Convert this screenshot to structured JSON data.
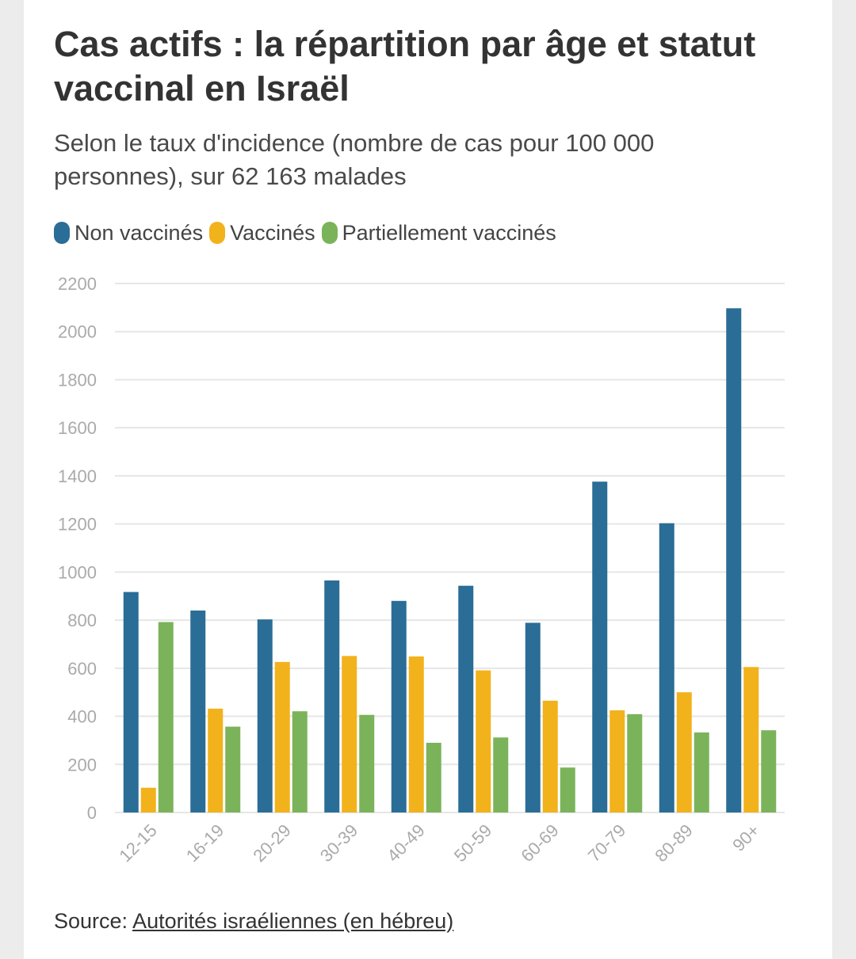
{
  "chart_data": {
    "type": "bar",
    "title": "Cas actifs : la répartition par âge et statut vaccinal en Israël",
    "subtitle": "Selon le taux d'incidence (nombre de cas pour 100 000 personnes), sur 62 163 malades",
    "categories": [
      "12-15",
      "16-19",
      "20-29",
      "30-39",
      "40-49",
      "50-59",
      "60-69",
      "70-79",
      "80-89",
      "90+"
    ],
    "series": [
      {
        "name": "Non vaccinés",
        "color": "#2a6d96",
        "values": [
          917,
          840,
          803,
          965,
          880,
          943,
          789,
          1376,
          1203,
          2097
        ]
      },
      {
        "name": "Vaccinés",
        "color": "#f2b21c",
        "values": [
          103,
          432,
          626,
          651,
          649,
          591,
          465,
          425,
          500,
          605
        ]
      },
      {
        "name": "Partiellement vaccinés",
        "color": "#7bb35a",
        "values": [
          792,
          357,
          421,
          406,
          290,
          312,
          187,
          409,
          333,
          342
        ]
      }
    ],
    "xlabel": "",
    "ylabel": "",
    "ylim": [
      0,
      2200
    ],
    "yticks": [
      0,
      200,
      400,
      600,
      800,
      1000,
      1200,
      1400,
      1600,
      1800,
      2000,
      2200
    ],
    "grid": true,
    "legend": "top-left"
  },
  "source": {
    "label": "Source: ",
    "link_text": "Autorités israéliennes (en hébreu)"
  }
}
